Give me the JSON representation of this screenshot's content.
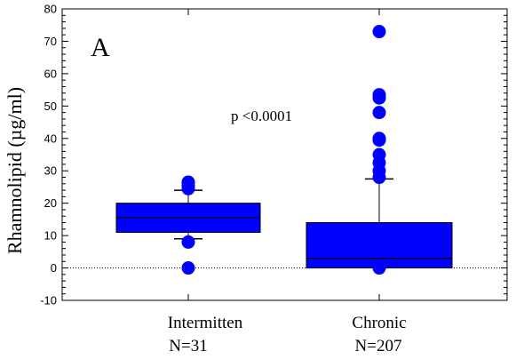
{
  "chart_data": {
    "type": "box",
    "panel_label": "A",
    "ylabel": "Rhamnolipid (µg/ml)",
    "ylim": [
      -10,
      80
    ],
    "yticks": [
      -10,
      0,
      10,
      20,
      30,
      40,
      50,
      60,
      70,
      80
    ],
    "annotation": "p <0.0001",
    "reference_line": 0,
    "box_color": "#0000ff",
    "groups": [
      {
        "label": "Intermitten",
        "n_label": "N=31",
        "min": 9,
        "q1": 11,
        "median": 15.5,
        "q3": 20,
        "max": 24,
        "outliers": [
          26.5,
          25.5,
          24.5,
          8,
          0
        ]
      },
      {
        "label": "Chronic",
        "n_label": "N=207",
        "min": 0,
        "q1": 0,
        "median": 3,
        "q3": 14,
        "max": 27.5,
        "outliers": [
          73,
          53.5,
          52.5,
          48,
          40,
          39.5,
          35,
          32.5,
          30,
          28,
          0
        ]
      }
    ]
  }
}
